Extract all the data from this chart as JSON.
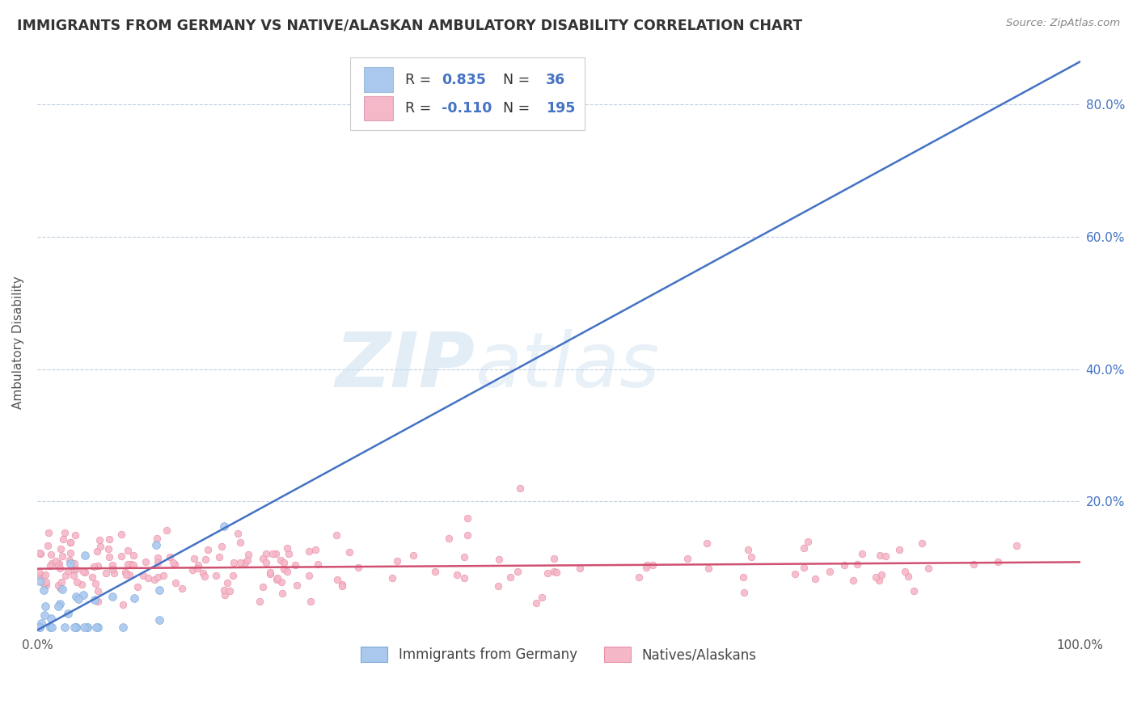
{
  "title": "IMMIGRANTS FROM GERMANY VS NATIVE/ALASKAN AMBULATORY DISABILITY CORRELATION CHART",
  "source": "Source: ZipAtlas.com",
  "ylabel": "Ambulatory Disability",
  "series1_label": "Immigrants from Germany",
  "series2_label": "Natives/Alaskans",
  "series1_R": 0.835,
  "series1_N": 36,
  "series2_R": -0.11,
  "series2_N": 195,
  "series1_color": "#aac8ee",
  "series2_color": "#f5b8c8",
  "series1_edge_color": "#7aaad8",
  "series2_edge_color": "#e890a8",
  "series1_line_color": "#4472c4",
  "series2_line_color": "#d05070",
  "background_color": "#ffffff",
  "grid_color": "#c0d0e0",
  "title_color": "#333333",
  "source_color": "#888888",
  "watermark_zip": "ZIP",
  "watermark_atlas": "atlas",
  "xlim": [
    0.0,
    1.0
  ],
  "ylim": [
    0.0,
    0.88
  ],
  "ytick_vals": [
    0.2,
    0.4,
    0.6,
    0.8
  ],
  "ytick_labels": [
    "20.0%",
    "40.0%",
    "60.0%",
    "80.0%"
  ],
  "legend_R_color": "#4472c4",
  "legend_N_color": "#4472c4",
  "series1_line_slope": 0.86,
  "series1_line_intercept": 0.005,
  "series2_line_slope": 0.01,
  "series2_line_intercept": 0.098
}
